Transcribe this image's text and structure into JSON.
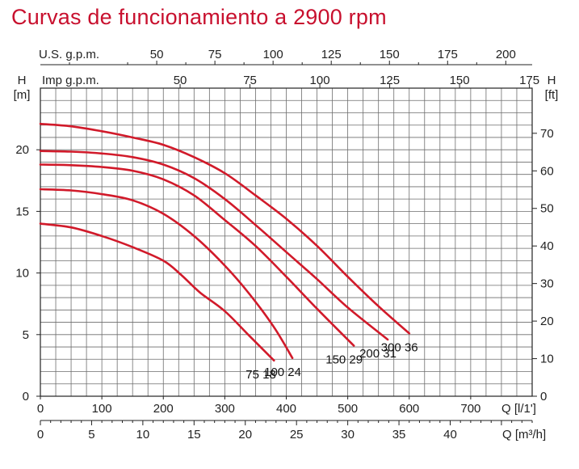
{
  "chart_data": {
    "type": "line",
    "title": "Curvas de funcionamiento a 2900 rpm",
    "x_axes": {
      "q_lmin": {
        "label": "Q [l/1']",
        "range": [
          0,
          800
        ],
        "ticks": [
          "0",
          "100",
          "200",
          "300",
          "400",
          "500",
          "600",
          "700"
        ]
      },
      "q_m3h": {
        "label": "Q [m³/h]",
        "range": [
          0,
          48
        ],
        "ticks": [
          "0",
          "5",
          "10",
          "15",
          "20",
          "25",
          "30",
          "35",
          "40"
        ]
      },
      "us_gpm": {
        "label": "U.S. g.p.m.",
        "range": [
          0,
          211.3
        ],
        "ticks": [
          "50",
          "75",
          "100",
          "125",
          "150",
          "175",
          "200"
        ]
      },
      "imp_gpm": {
        "label": "Imp g.p.m.",
        "range": [
          0,
          176
        ],
        "ticks": [
          "50",
          "75",
          "100",
          "125",
          "150",
          "175"
        ]
      }
    },
    "y_axes": {
      "h_m": {
        "label_top": "H",
        "label_unit": "[m]",
        "range": [
          0,
          25
        ],
        "ticks": [
          "0",
          "5",
          "10",
          "15",
          "20"
        ]
      },
      "h_ft": {
        "label_top": "H",
        "label_unit": "[ft]",
        "range": [
          0,
          82
        ],
        "ticks": [
          "0",
          "10",
          "20",
          "30",
          "40",
          "50",
          "60",
          "70"
        ]
      }
    },
    "grid": true,
    "series": [
      {
        "name": "75 18",
        "color": "#d11a2a",
        "points": [
          [
            0,
            14.0
          ],
          [
            50,
            13.7
          ],
          [
            100,
            13.0
          ],
          [
            150,
            12.1
          ],
          [
            200,
            11.0
          ],
          [
            230,
            9.8
          ],
          [
            260,
            8.4
          ],
          [
            300,
            6.9
          ],
          [
            340,
            4.9
          ],
          [
            380,
            2.9
          ]
        ]
      },
      {
        "name": "100 24",
        "color": "#d11a2a",
        "points": [
          [
            0,
            16.8
          ],
          [
            50,
            16.7
          ],
          [
            100,
            16.4
          ],
          [
            150,
            15.9
          ],
          [
            200,
            14.8
          ],
          [
            250,
            13.0
          ],
          [
            300,
            10.6
          ],
          [
            340,
            8.3
          ],
          [
            380,
            5.6
          ],
          [
            410,
            3.1
          ]
        ]
      },
      {
        "name": "150 29",
        "color": "#d11a2a",
        "points": [
          [
            0,
            18.8
          ],
          [
            50,
            18.75
          ],
          [
            100,
            18.6
          ],
          [
            150,
            18.3
          ],
          [
            200,
            17.6
          ],
          [
            250,
            16.3
          ],
          [
            300,
            14.3
          ],
          [
            350,
            12.2
          ],
          [
            400,
            9.7
          ],
          [
            450,
            7.1
          ],
          [
            510,
            4.1
          ]
        ]
      },
      {
        "name": "200 31",
        "color": "#d11a2a",
        "points": [
          [
            0,
            19.9
          ],
          [
            50,
            19.85
          ],
          [
            100,
            19.7
          ],
          [
            150,
            19.4
          ],
          [
            200,
            18.8
          ],
          [
            250,
            17.7
          ],
          [
            300,
            16.0
          ],
          [
            350,
            13.9
          ],
          [
            400,
            11.7
          ],
          [
            450,
            9.5
          ],
          [
            500,
            7.2
          ],
          [
            565,
            4.6
          ]
        ]
      },
      {
        "name": "300 36",
        "color": "#d11a2a",
        "points": [
          [
            0,
            22.1
          ],
          [
            50,
            21.9
          ],
          [
            100,
            21.5
          ],
          [
            150,
            21.0
          ],
          [
            200,
            20.4
          ],
          [
            250,
            19.4
          ],
          [
            300,
            18.1
          ],
          [
            350,
            16.3
          ],
          [
            400,
            14.4
          ],
          [
            450,
            12.2
          ],
          [
            500,
            9.7
          ],
          [
            550,
            7.3
          ],
          [
            600,
            5.1
          ]
        ]
      }
    ]
  }
}
